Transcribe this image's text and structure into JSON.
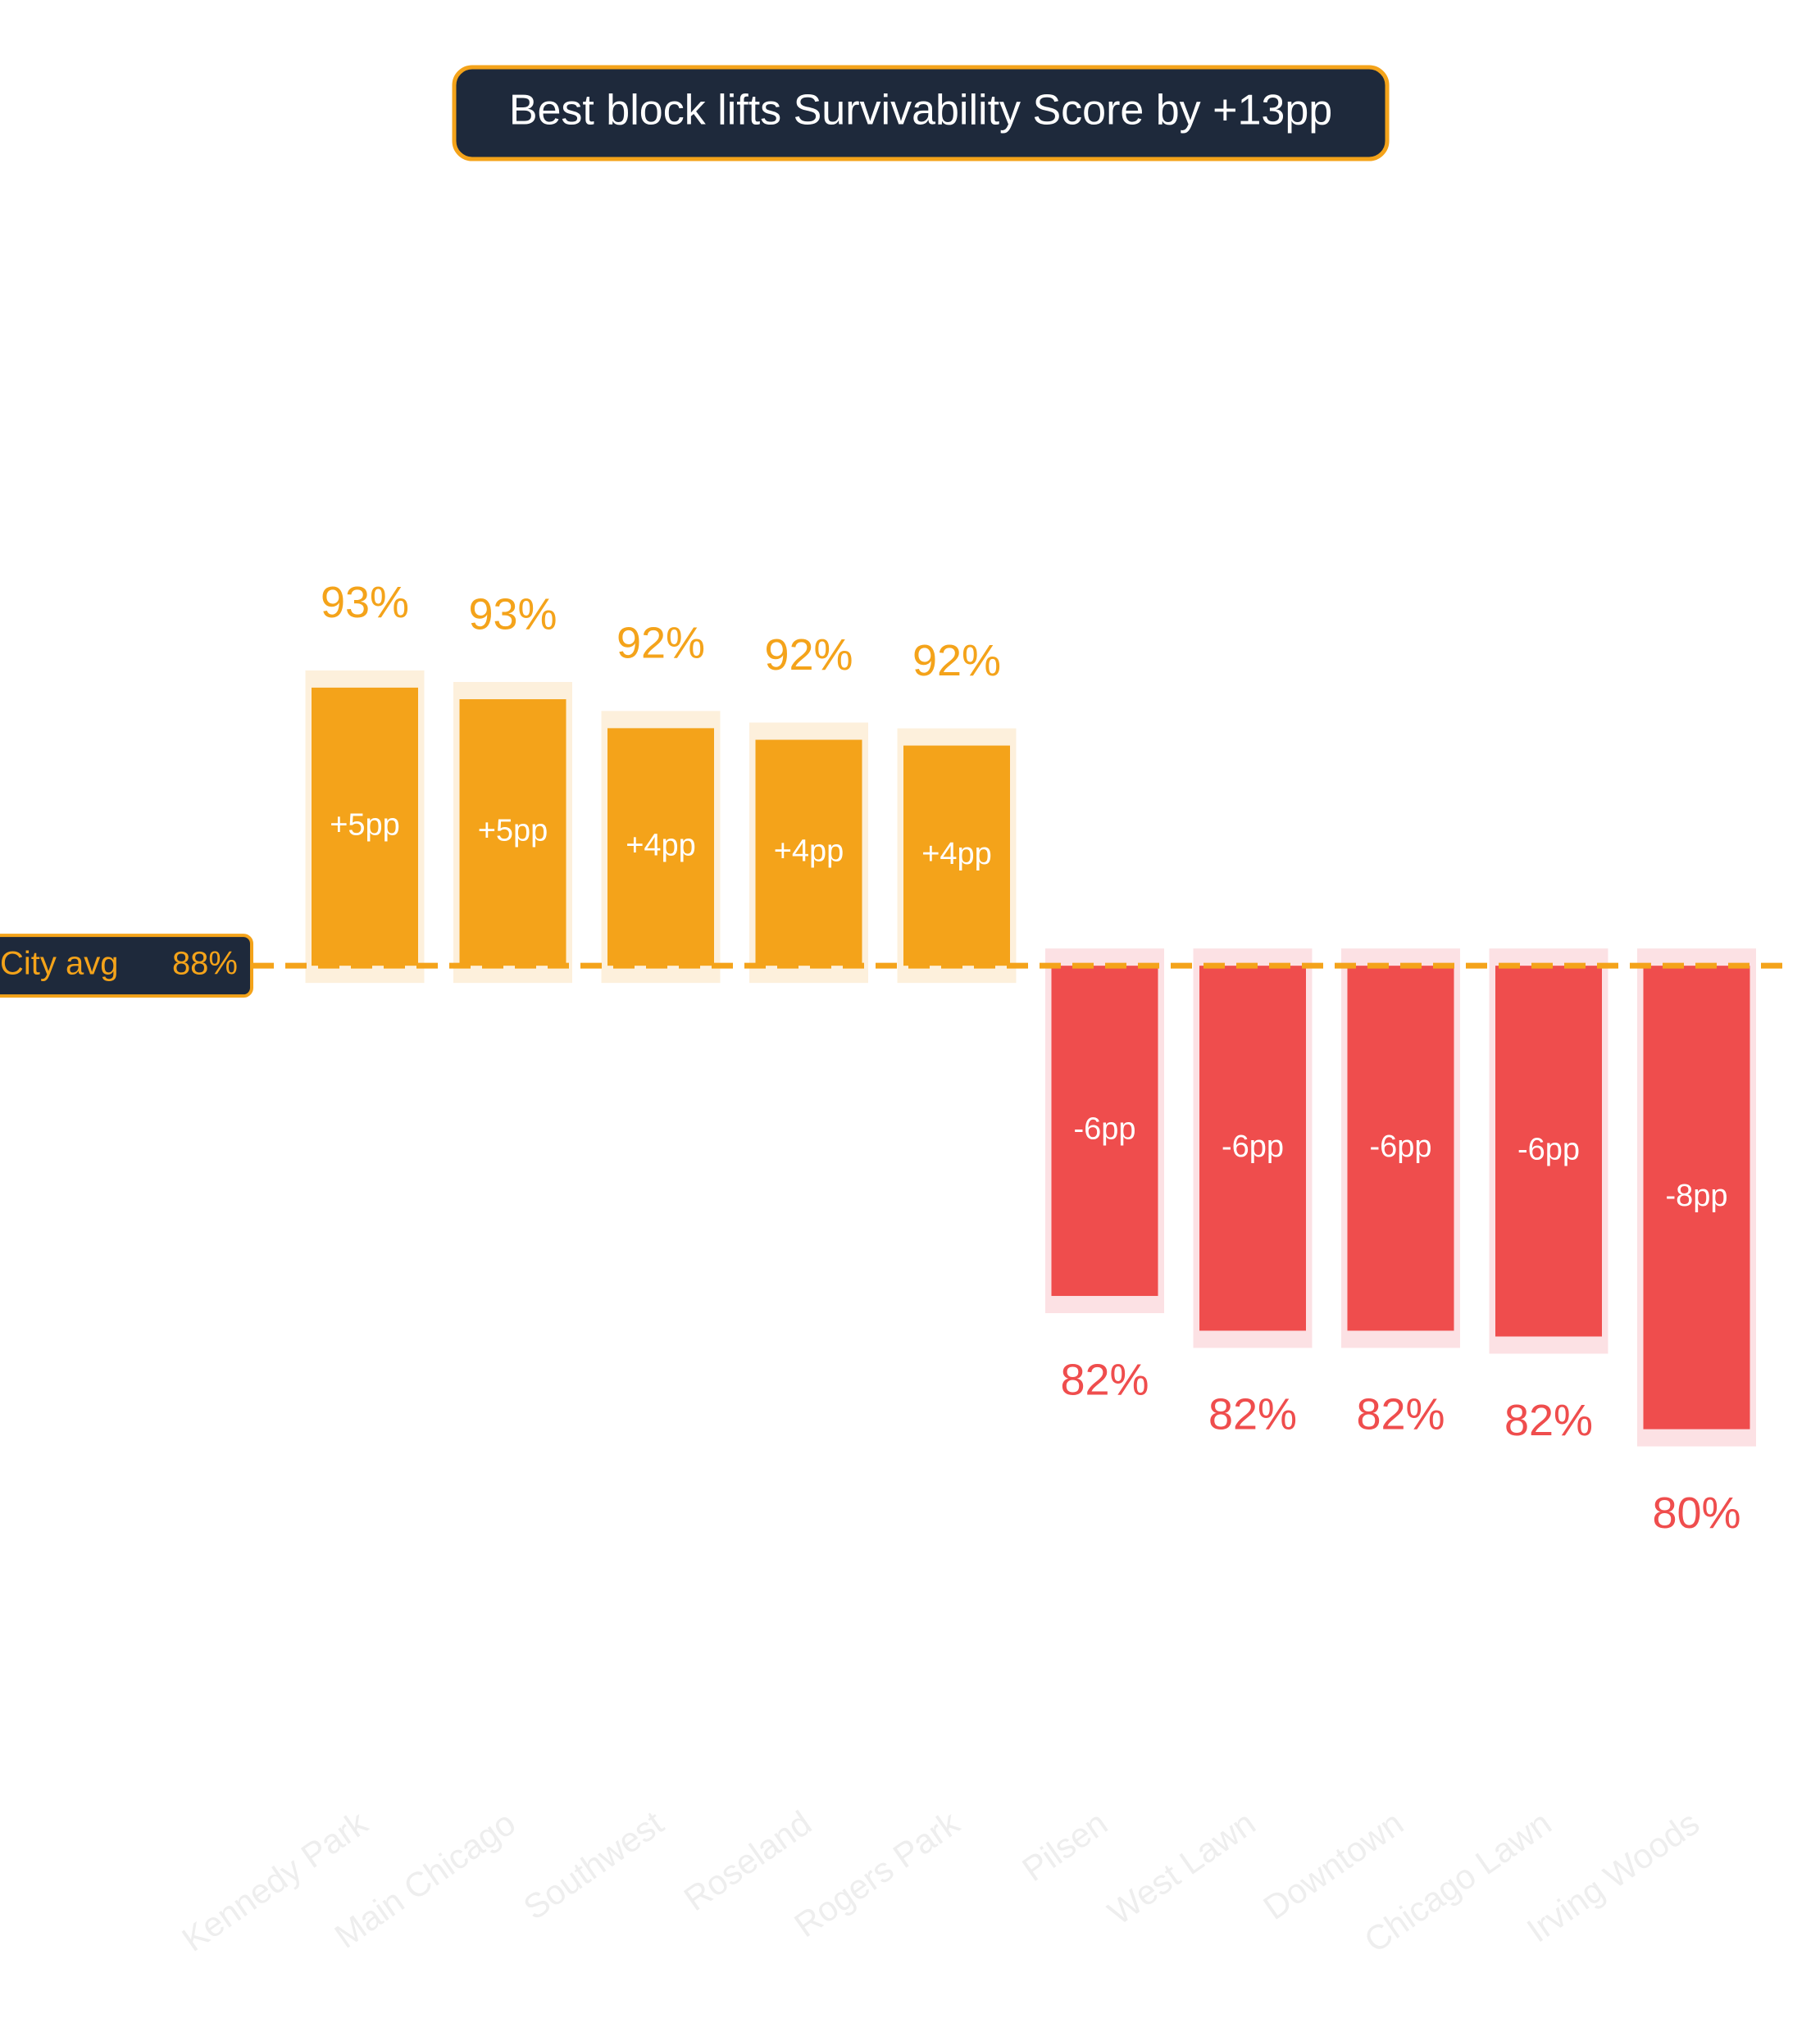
{
  "chart_data": {
    "type": "diverging-bar",
    "title": "Best block lifts Survivability Score by +13pp",
    "categories": [
      "Kennedy Park",
      "Main Chicago",
      "Southwest",
      "Roseland",
      "Rogers Park",
      "Pilsen",
      "West Lawn",
      "Downtown",
      "Chicago Lawn",
      "Irving Woods"
    ],
    "values": [
      92.8,
      92.6,
      92.1,
      91.9,
      91.8,
      82.3,
      81.7,
      81.7,
      81.6,
      80.0
    ],
    "value_labels": [
      "93%",
      "93%",
      "92%",
      "92%",
      "92%",
      "82%",
      "82%",
      "82%",
      "82%",
      "80%"
    ],
    "deltas": [
      4.8,
      4.6,
      4.1,
      3.9,
      3.8,
      -5.7,
      -6.3,
      -6.3,
      -6.4,
      -8.0
    ],
    "delta_labels": [
      "+5pp",
      "+5pp",
      "+4pp",
      "+4pp",
      "+4pp",
      "-6pp",
      "-6pp",
      "-6pp",
      "-6pp",
      "-8pp"
    ],
    "reference": {
      "label": "City avg",
      "value": 88,
      "value_label": "88%"
    },
    "positive_color": "#f4a31a",
    "negative_color": "#ef4d4d",
    "ylim": [
      75,
      100
    ]
  }
}
